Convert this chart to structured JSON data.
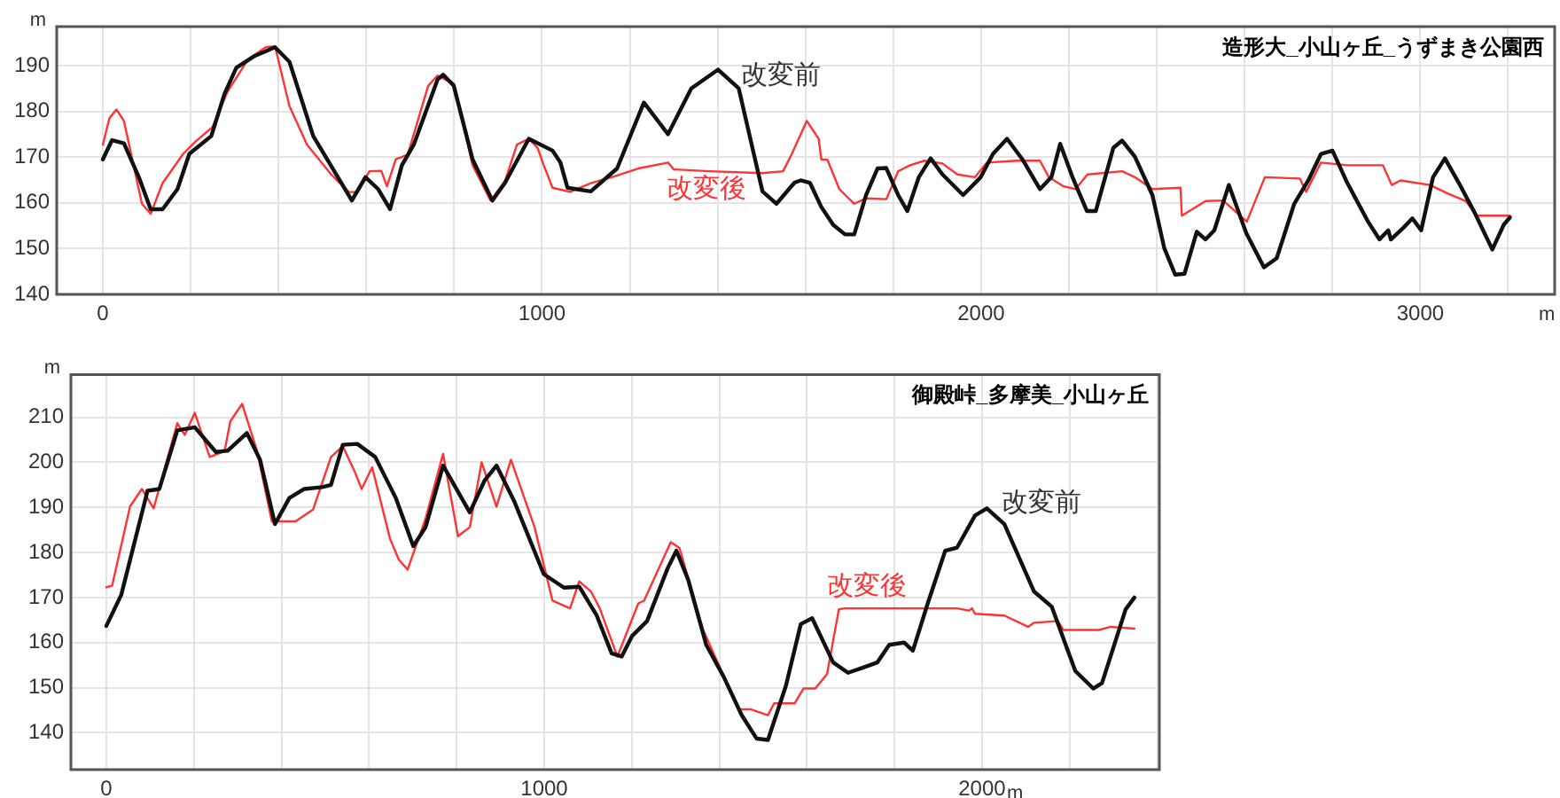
{
  "chart_data": [
    {
      "type": "line",
      "title": "造形大_小山ヶ丘_うずまき公園西",
      "xlabel": "m",
      "ylabel": "m",
      "xlim": [
        -105,
        3306
      ],
      "ylim": [
        140,
        198.5
      ],
      "xticks": [
        0,
        {
          "value": 200,
          "label": null
        },
        {
          "value": 400,
          "label": null
        },
        {
          "value": 600,
          "label": null
        },
        {
          "value": 800,
          "label": null
        },
        1000,
        {
          "value": 1200,
          "label": null
        },
        {
          "value": 1400,
          "label": null
        },
        {
          "value": 1600,
          "label": null
        },
        {
          "value": 1800,
          "label": null
        },
        2000,
        {
          "value": 2200,
          "label": null
        },
        {
          "value": 2400,
          "label": null
        },
        {
          "value": 2600,
          "label": null
        },
        {
          "value": 2800,
          "label": null
        },
        3000,
        {
          "value": 3200,
          "label": null
        }
      ],
      "yticks": [
        140,
        150,
        160,
        170,
        180,
        190
      ],
      "grid": true,
      "legend": false,
      "marker": "none",
      "line_style": "solid",
      "series": [
        {
          "color": "#111111",
          "x": [
            0,
            21,
            48,
            82,
            109,
            136,
            170,
            197,
            247,
            277,
            304,
            344,
            392,
            425,
            479,
            567,
            598,
            627,
            654,
            681,
            708,
            762,
            775,
            799,
            842,
            887,
            916,
            970,
            1024,
            1042,
            1058,
            1111,
            1171,
            1232,
            1287,
            1340,
            1401,
            1448,
            1502,
            1534,
            1575,
            1589,
            1610,
            1636,
            1663,
            1690,
            1711,
            1738,
            1764,
            1784,
            1811,
            1832,
            1858,
            1885,
            1912,
            1959,
            1999,
            2027,
            2059,
            2094,
            2134,
            2160,
            2180,
            2208,
            2241,
            2261,
            2301,
            2321,
            2350,
            2390,
            2417,
            2442,
            2463,
            2491,
            2511,
            2531,
            2564,
            2604,
            2644,
            2673,
            2713,
            2745,
            2774,
            2800,
            2834,
            2881,
            2907,
            2927,
            2933,
            2962,
            2982,
            3002,
            3029,
            3056,
            3088,
            3124,
            3164,
            3190,
            3204
          ],
          "values": [
            169.5,
            173.7,
            173,
            165.6,
            158.6,
            158.6,
            163,
            170.7,
            174.6,
            183.8,
            189.5,
            192,
            194,
            190.8,
            174.6,
            160.5,
            165.6,
            163,
            158.6,
            168.2,
            172.7,
            186.9,
            188,
            185.6,
            169.5,
            160.5,
            164.4,
            174,
            171.4,
            168.8,
            163.3,
            162.5,
            167.5,
            181.9,
            175,
            185,
            189.1,
            185,
            162.5,
            159.8,
            164.4,
            164.9,
            164.4,
            159.1,
            155.2,
            153.1,
            153.1,
            161.7,
            167.5,
            167.6,
            161.7,
            158.2,
            165.6,
            169.7,
            166.2,
            161.7,
            165.6,
            170.7,
            174,
            169.5,
            163,
            165.6,
            172.9,
            165.6,
            158.2,
            158.2,
            172,
            173.6,
            170.1,
            161.7,
            150.1,
            144.3,
            144.5,
            153.7,
            152,
            154,
            163.9,
            153.3,
            145.9,
            147.9,
            159.8,
            164.9,
            170.7,
            171.4,
            164.3,
            155.9,
            152,
            154,
            152,
            154.6,
            156.6,
            154,
            165.6,
            169.7,
            164.3,
            157.8,
            149.8,
            155.2,
            156.8
          ]
        },
        {
          "color": "#ff3333",
          "x": [
            0,
            15,
            31,
            48,
            89,
            109,
            136,
            183,
            210,
            250,
            284,
            331,
            371,
            392,
            425,
            465,
            520,
            560,
            580,
            607,
            634,
            647,
            667,
            694,
            741,
            762,
            799,
            842,
            883,
            916,
            943,
            970,
            990,
            1004,
            1024,
            1064,
            1111,
            1165,
            1219,
            1287,
            1300,
            1381,
            1502,
            1549,
            1569,
            1603,
            1630,
            1636,
            1650,
            1677,
            1711,
            1738,
            1784,
            1811,
            1838,
            1871,
            1912,
            1946,
            1986,
            2013,
            2081,
            2134,
            2154,
            2188,
            2215,
            2242,
            2321,
            2350,
            2390,
            2454,
            2457,
            2511,
            2551,
            2605,
            2646,
            2726,
            2740,
            2774,
            2834,
            2915,
            2935,
            2955,
            3022,
            3063,
            3103,
            3130,
            3204
          ],
          "values": [
            172.7,
            178.5,
            180.4,
            177.9,
            159.8,
            157.6,
            164.3,
            170.7,
            173.3,
            176.6,
            184.3,
            191.4,
            194,
            194.2,
            181.1,
            172.7,
            166.2,
            162.4,
            162.3,
            166.9,
            167,
            163.6,
            169.5,
            170.5,
            185.6,
            187.8,
            186,
            168.2,
            160.5,
            164.8,
            172.7,
            174,
            172,
            168.2,
            163.3,
            162.4,
            164.3,
            165.8,
            167.5,
            168.8,
            167.3,
            166.9,
            166.5,
            166.9,
            170.7,
            177.9,
            174,
            169.5,
            169.4,
            163,
            159.8,
            161,
            160.8,
            166.9,
            168.2,
            169.2,
            168.6,
            166.2,
            165.6,
            168.8,
            169.2,
            169.2,
            165.6,
            163.6,
            163,
            166.2,
            166.9,
            165.6,
            163,
            163.3,
            157.2,
            160.4,
            160.5,
            155.9,
            165.6,
            165.3,
            162.4,
            168.8,
            168.2,
            168.2,
            163.9,
            164.9,
            163.9,
            162,
            160.4,
            157.2,
            157.2
          ]
        }
      ],
      "annotations": [
        "改変前",
        "改変後"
      ]
    },
    {
      "type": "line",
      "title": "御殿峠_多摩美_小山ヶ丘",
      "xlabel": "m",
      "ylabel": "m",
      "xlim": [
        -81,
        2405
      ],
      "ylim": [
        131.8,
        219.5
      ],
      "xticks": [
        0,
        {
          "value": 200,
          "label": null
        },
        {
          "value": 400,
          "label": null
        },
        {
          "value": 600,
          "label": null
        },
        {
          "value": 800,
          "label": null
        },
        1000,
        {
          "value": 1200,
          "label": null
        },
        {
          "value": 1400,
          "label": null
        },
        {
          "value": 1600,
          "label": null
        },
        {
          "value": 1800,
          "label": null
        },
        2000,
        {
          "value": 2200,
          "label": null
        },
        {
          "value": 2400,
          "label": null
        }
      ],
      "yticks": [
        140,
        150,
        160,
        170,
        180,
        190,
        200,
        210
      ],
      "grid": true,
      "legend": false,
      "marker": "none",
      "line_style": "solid",
      "series": [
        {
          "color": "#111111",
          "x": [
            0,
            34,
            94,
            121,
            162,
            202,
            250,
            277,
            321,
            351,
            385,
            418,
            452,
            493,
            513,
            540,
            573,
            614,
            661,
            701,
            729,
            769,
            830,
            864,
            891,
            931,
            999,
            1045,
            1080,
            1120,
            1154,
            1177,
            1201,
            1235,
            1282,
            1302,
            1329,
            1370,
            1410,
            1451,
            1485,
            1511,
            1552,
            1586,
            1612,
            1660,
            1694,
            1727,
            1761,
            1788,
            1822,
            1842,
            1876,
            1916,
            1943,
            1984,
            2011,
            2051,
            2119,
            2159,
            2213,
            2254,
            2274,
            2328,
            2348
          ],
          "values": [
            163.7,
            170.6,
            193.7,
            194.1,
            207.1,
            207.8,
            202.3,
            202.6,
            206.5,
            200.6,
            186.3,
            192.1,
            194.1,
            194.5,
            195,
            203.9,
            204.1,
            201.2,
            192.1,
            181.4,
            185.6,
            199.3,
            188.9,
            196,
            199.3,
            191.5,
            175.2,
            172.2,
            172.4,
            166,
            157.6,
            156.9,
            161.5,
            164.8,
            176.5,
            180.4,
            173.9,
            159.5,
            152.4,
            143.9,
            138.7,
            138.4,
            150.4,
            164.1,
            165.4,
            155.6,
            153.3,
            154.4,
            155.6,
            159.5,
            160,
            158.2,
            168.7,
            180.4,
            181.1,
            188.2,
            189.8,
            186.3,
            171.3,
            168,
            153.7,
            149.8,
            151,
            167.4,
            170
          ]
        },
        {
          "color": "#ff3333",
          "x": [
            0,
            13,
            54,
            81,
            108,
            135,
            162,
            179,
            202,
            236,
            270,
            283,
            310,
            344,
            378,
            432,
            472,
            513,
            540,
            567,
            583,
            607,
            648,
            668,
            688,
            729,
            769,
            803,
            830,
            857,
            891,
            924,
            978,
            1019,
            1059,
            1080,
            1107,
            1127,
            1167,
            1215,
            1228,
            1289,
            1309,
            1363,
            1444,
            1471,
            1511,
            1525,
            1572,
            1592,
            1619,
            1646,
            1673,
            1687,
            1943,
            1970,
            1977,
            1984,
            2051,
            2105,
            2119,
            2173,
            2186,
            2267,
            2294,
            2348
          ],
          "values": [
            172.3,
            172.6,
            190.2,
            194.1,
            189.8,
            199.3,
            208.7,
            206.1,
            211,
            201.2,
            202.5,
            209.1,
            213,
            202.6,
            186.9,
            186.9,
            189.5,
            201.2,
            203.6,
            198,
            194.1,
            198.9,
            183,
            178.4,
            176.2,
            187.5,
            201.9,
            183.6,
            185.6,
            200,
            190.2,
            200.6,
            185.6,
            169.3,
            167.6,
            173.6,
            171.3,
            167.6,
            156.9,
            168.7,
            169.3,
            182.3,
            181,
            162.8,
            145.2,
            145.2,
            143.9,
            146.5,
            146.5,
            149.8,
            149.8,
            153,
            167.4,
            167.6,
            167.6,
            167.1,
            167.6,
            166.4,
            166,
            163.5,
            164.4,
            164.8,
            162.8,
            162.8,
            163.5,
            163.1
          ]
        }
      ],
      "annotations": [
        "改変前",
        "改変後"
      ]
    }
  ]
}
